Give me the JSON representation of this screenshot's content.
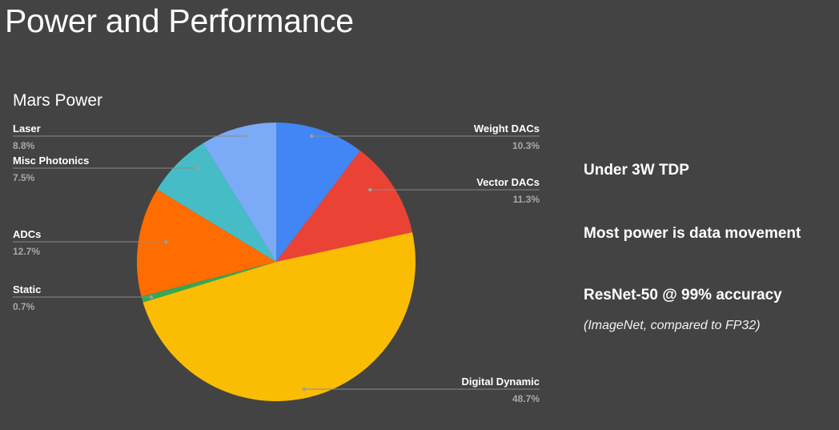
{
  "slide": {
    "title": "Power and Performance",
    "bullets": [
      "Under 3W TDP",
      "Most power is data movement",
      "ResNet-50 @ 99% accuracy"
    ],
    "note": "(ImageNet, compared to FP32)"
  },
  "chart_data": {
    "type": "pie",
    "title": "Mars Power",
    "unit": "%",
    "slices": [
      {
        "label": "Weight DACs",
        "value": 10.3,
        "display": "10.3%",
        "color": "#4285f4"
      },
      {
        "label": "Vector DACs",
        "value": 11.3,
        "display": "11.3%",
        "color": "#ea4335"
      },
      {
        "label": "Digital Dynamic",
        "value": 48.7,
        "display": "48.7%",
        "color": "#fbbc04"
      },
      {
        "label": "Static",
        "value": 0.7,
        "display": "0.7%",
        "color": "#34a853"
      },
      {
        "label": "ADCs",
        "value": 12.7,
        "display": "12.7%",
        "color": "#ff6d01"
      },
      {
        "label": "Misc Photonics",
        "value": 7.5,
        "display": "7.5%",
        "color": "#46bdc6"
      },
      {
        "label": "Laser",
        "value": 8.8,
        "display": "8.8%",
        "color": "#7baaf7"
      }
    ],
    "legend": "none",
    "start_angle": "12 o'clock",
    "direction": "clockwise"
  }
}
